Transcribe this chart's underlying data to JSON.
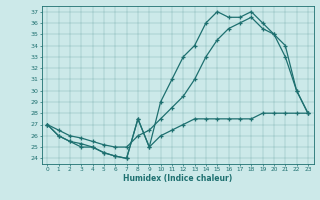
{
  "xlabel": "Humidex (Indice chaleur)",
  "xlim": [
    -0.5,
    23.5
  ],
  "ylim": [
    23.5,
    37.5
  ],
  "xticks": [
    0,
    1,
    2,
    3,
    4,
    5,
    6,
    7,
    8,
    9,
    10,
    11,
    12,
    13,
    14,
    15,
    16,
    17,
    18,
    19,
    20,
    21,
    22,
    23
  ],
  "yticks": [
    24,
    25,
    26,
    27,
    28,
    29,
    30,
    31,
    32,
    33,
    34,
    35,
    36,
    37
  ],
  "background_color": "#cce9e9",
  "line_color": "#1e7070",
  "line1_x": [
    0,
    1,
    2,
    3,
    4,
    5,
    6,
    7,
    8,
    9,
    10,
    11,
    12,
    13,
    14,
    15,
    16,
    17,
    18,
    19,
    20,
    21,
    22,
    23
  ],
  "line1_y": [
    27,
    26,
    25.5,
    25,
    25,
    24.5,
    24.2,
    24,
    27.5,
    25,
    29,
    31,
    33,
    34,
    36,
    37,
    36.5,
    36.5,
    37,
    36,
    35,
    33,
    30,
    28
  ],
  "line2_x": [
    0,
    1,
    2,
    3,
    4,
    5,
    6,
    7,
    8,
    9,
    10,
    11,
    12,
    13,
    14,
    15,
    16,
    17,
    18,
    19,
    20,
    21,
    22,
    23
  ],
  "line2_y": [
    27,
    26.5,
    26,
    25.8,
    25.5,
    25.2,
    25,
    25,
    26,
    26.5,
    27.5,
    28.5,
    29.5,
    31,
    33,
    34.5,
    35.5,
    36,
    36.5,
    35.5,
    35,
    34,
    30,
    28
  ],
  "line3_x": [
    0,
    1,
    2,
    3,
    4,
    5,
    6,
    7,
    8,
    9,
    10,
    11,
    12,
    13,
    14,
    15,
    16,
    17,
    18,
    19,
    20,
    21,
    22,
    23
  ],
  "line3_y": [
    27,
    26,
    25.5,
    25.3,
    25,
    24.5,
    24.2,
    24,
    27.5,
    25,
    26,
    26.5,
    27,
    27.5,
    27.5,
    27.5,
    27.5,
    27.5,
    27.5,
    28,
    28,
    28,
    28,
    28
  ]
}
